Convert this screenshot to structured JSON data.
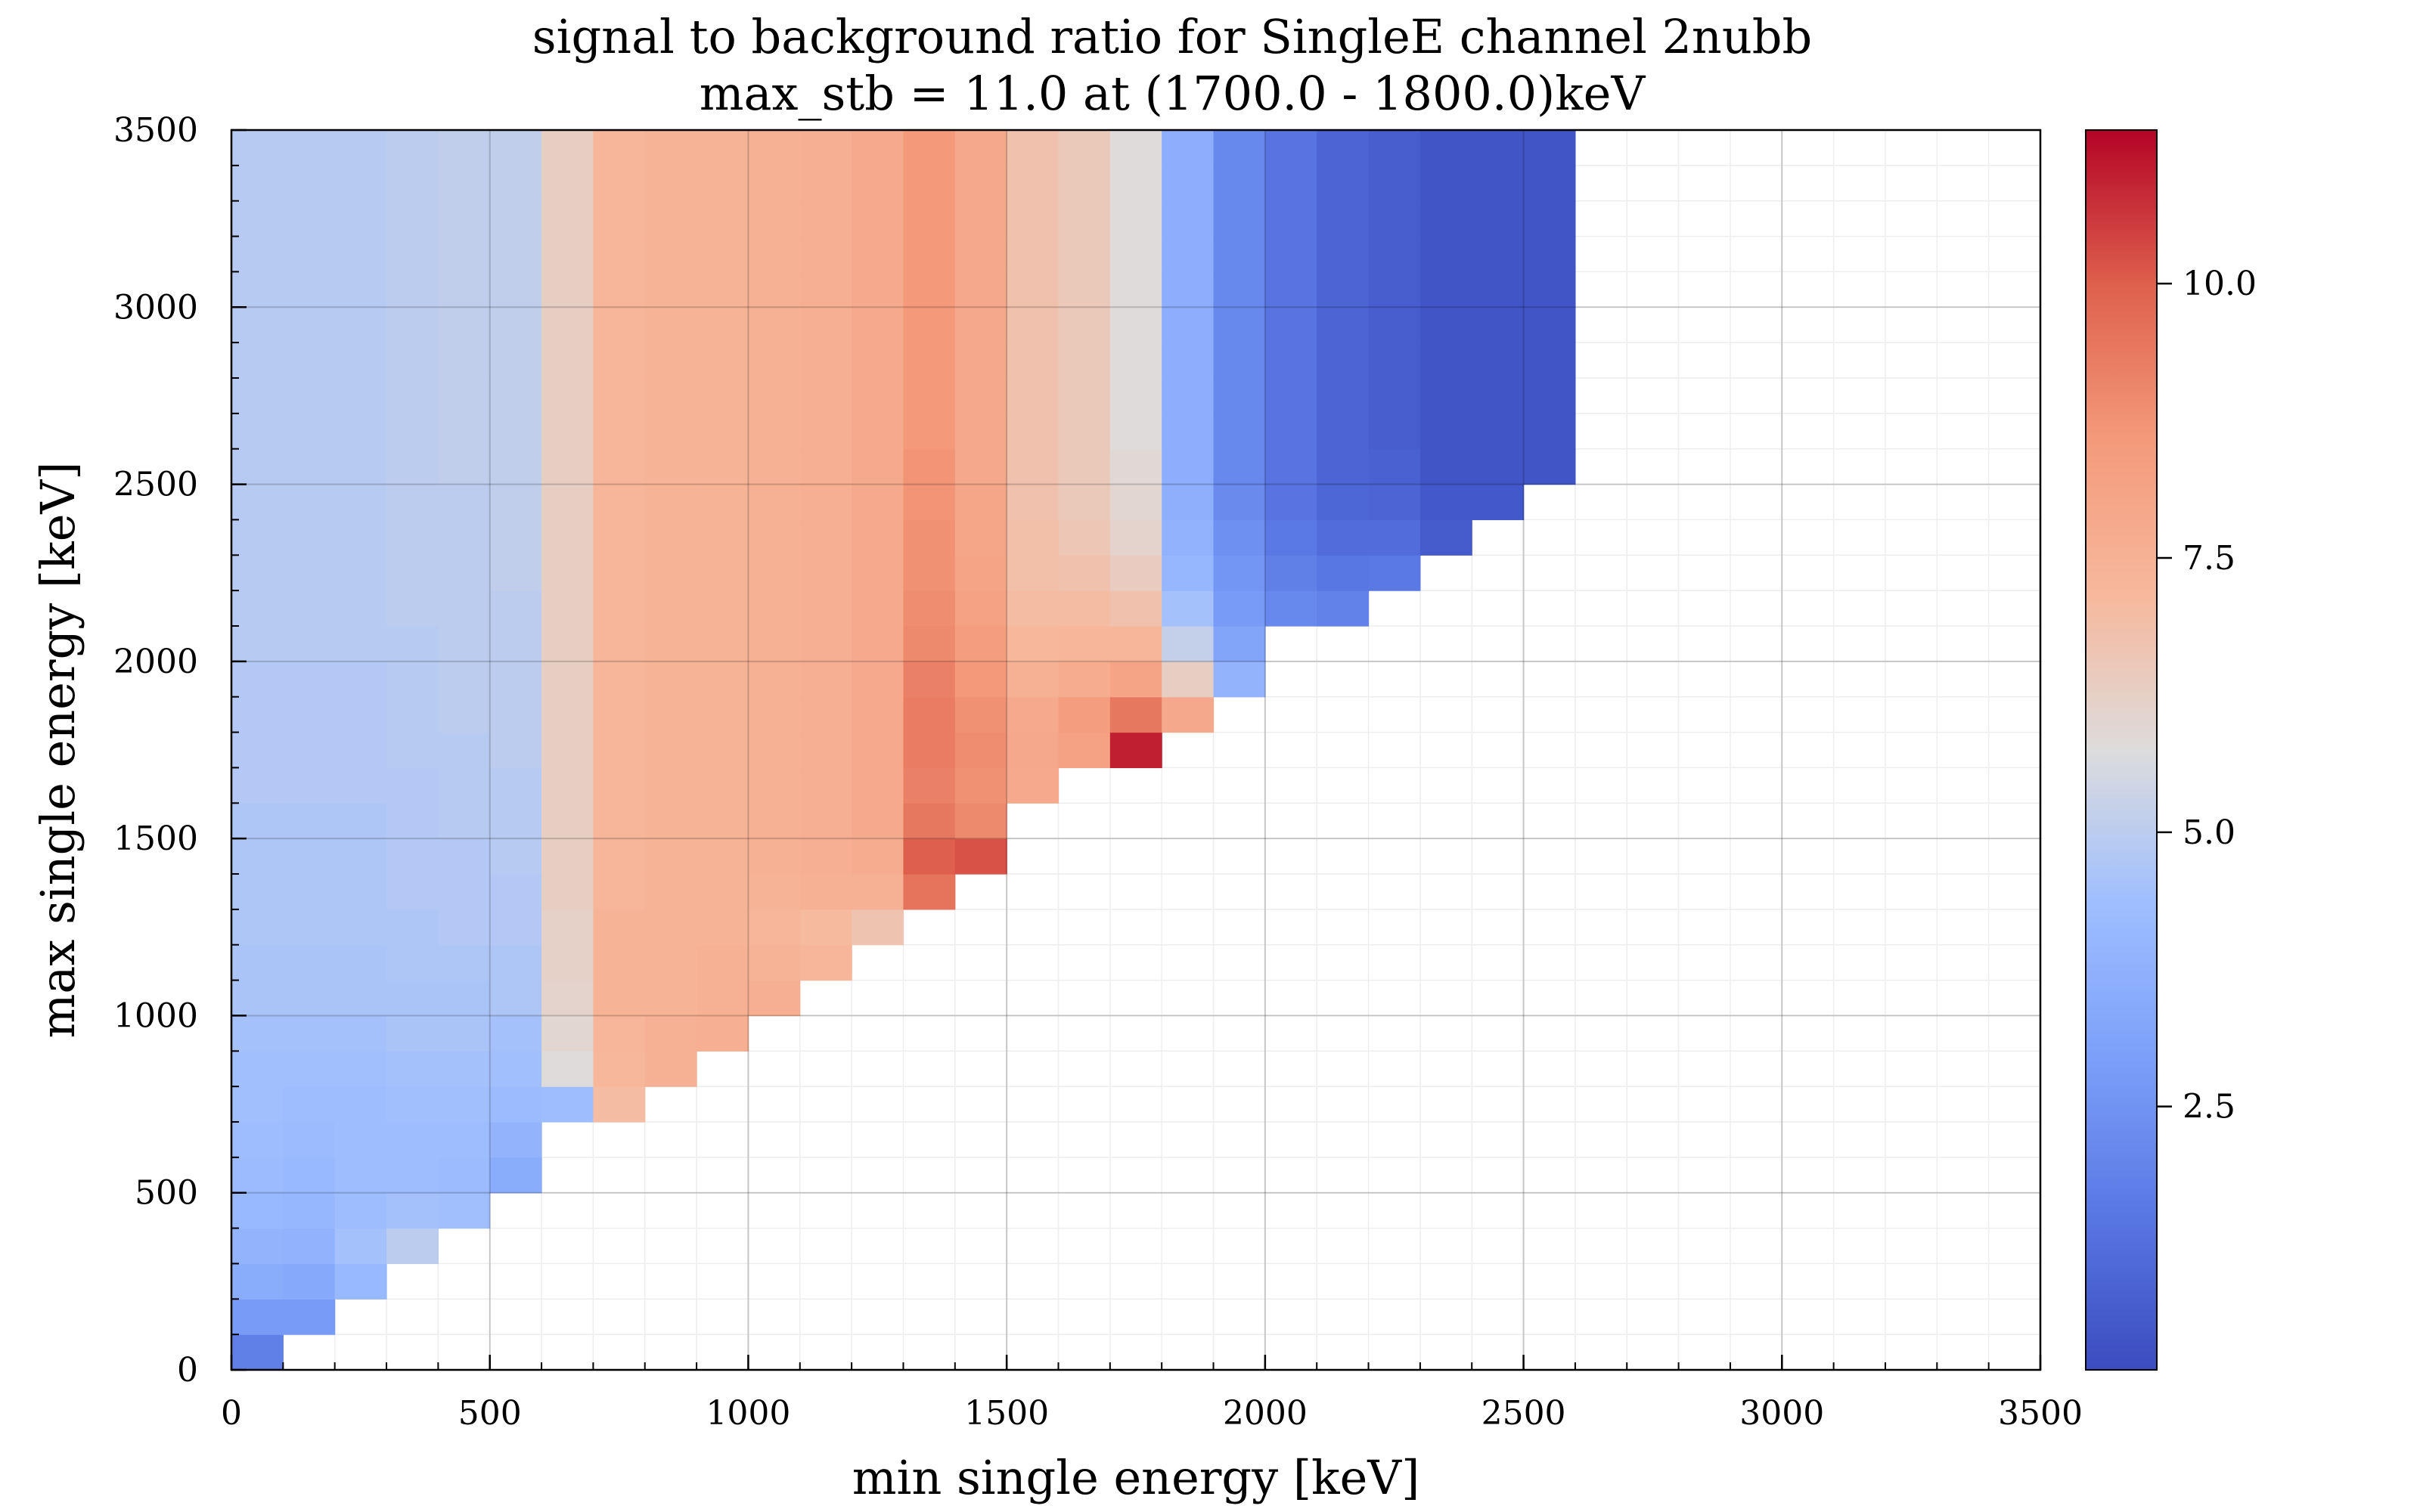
{
  "chart_data": {
    "type": "heatmap",
    "title": "signal to background ratio for SingleE channel 2nubb",
    "subtitle": "max_stb = 11.0 at (1700.0 - 1800.0)keV",
    "xlabel": "min single energy [keV]",
    "ylabel": "max single energy [keV]",
    "xlim": [
      0,
      3500
    ],
    "ylim": [
      0,
      3500
    ],
    "xticks": [
      "0",
      "500",
      "1000",
      "1500",
      "2000",
      "2500",
      "3000",
      "3500"
    ],
    "yticks": [
      "0",
      "500",
      "1000",
      "1500",
      "2000",
      "2500",
      "3000",
      "3500"
    ],
    "colorbar": {
      "range": [
        0.1,
        11.4
      ],
      "ticks": [
        "2.5",
        "5.0",
        "7.5",
        "10.0"
      ],
      "colormap": "coolwarm"
    },
    "bin_width": 100,
    "grid": true,
    "x_bin_starts": [
      0,
      100,
      200,
      300,
      400,
      500,
      600,
      700,
      800,
      900,
      1000,
      1100,
      1200,
      1300,
      1400,
      1500,
      1600,
      1700,
      1800,
      1900,
      2000,
      2100,
      2200,
      2300,
      2400,
      2500
    ],
    "columns": [
      {
        "x": 0,
        "y_min": 0,
        "values": [
          1.8,
          2.8,
          3.5,
          3.9,
          4.1,
          4.2,
          4.3,
          4.4,
          4.4,
          4.5,
          4.6,
          4.6,
          4.7,
          4.7,
          4.7,
          4.7,
          4.8,
          4.8,
          4.8,
          4.8,
          4.9,
          4.9,
          4.9,
          4.9,
          4.9,
          4.9,
          4.9,
          4.9,
          4.9,
          4.9,
          4.9,
          4.9,
          4.9,
          4.9,
          4.9
        ]
      },
      {
        "x": 100,
        "y_min": 100,
        "values": [
          2.8,
          3.4,
          3.8,
          4.0,
          4.1,
          4.2,
          4.3,
          4.4,
          4.5,
          4.6,
          4.6,
          4.7,
          4.7,
          4.7,
          4.7,
          4.8,
          4.8,
          4.8,
          4.8,
          4.9,
          4.9,
          4.9,
          4.9,
          4.9,
          4.9,
          4.9,
          4.9,
          4.9,
          4.9,
          4.9,
          4.9,
          4.9,
          4.9,
          4.9
        ]
      },
      {
        "x": 200,
        "y_min": 200,
        "values": [
          4.1,
          4.5,
          4.3,
          4.3,
          4.3,
          4.3,
          4.4,
          4.5,
          4.6,
          4.6,
          4.7,
          4.7,
          4.7,
          4.7,
          4.8,
          4.8,
          4.8,
          4.8,
          4.9,
          4.9,
          4.9,
          4.9,
          4.9,
          4.9,
          4.9,
          4.9,
          4.9,
          4.9,
          4.9,
          4.9,
          4.9,
          4.9,
          4.9
        ]
      },
      {
        "x": 300,
        "y_min": 300,
        "values": [
          5.0,
          4.5,
          4.3,
          4.3,
          4.4,
          4.5,
          4.6,
          4.6,
          4.7,
          4.7,
          4.8,
          4.8,
          4.8,
          4.8,
          4.9,
          4.9,
          4.9,
          4.9,
          5.0,
          5.0,
          5.0,
          5.0,
          5.0,
          5.0,
          5.0,
          5.0,
          5.0,
          5.0,
          5.0,
          5.0,
          5.0,
          5.0
        ]
      },
      {
        "x": 400,
        "y_min": 400,
        "values": [
          4.4,
          4.2,
          4.3,
          4.4,
          4.5,
          4.6,
          4.6,
          4.7,
          4.8,
          4.8,
          4.8,
          4.9,
          4.9,
          4.9,
          5.0,
          5.0,
          5.0,
          5.0,
          5.0,
          5.0,
          5.0,
          5.1,
          5.1,
          5.1,
          5.1,
          5.1,
          5.1,
          5.1,
          5.1,
          5.1,
          5.1
        ]
      },
      {
        "x": 500,
        "y_min": 500,
        "values": [
          3.5,
          3.9,
          4.2,
          4.4,
          4.5,
          4.7,
          4.7,
          4.8,
          4.8,
          4.9,
          4.9,
          4.9,
          5.0,
          5.0,
          5.0,
          5.0,
          5.0,
          5.1,
          5.1,
          5.1,
          5.1,
          5.1,
          5.1,
          5.1,
          5.1,
          5.1,
          5.1,
          5.1,
          5.1,
          5.1
        ]
      },
      {
        "x": 600,
        "y_min": 700,
        "values": [
          4.3,
          5.8,
          6.0,
          6.1,
          6.2,
          6.2,
          6.3,
          6.3,
          6.3,
          6.3,
          6.3,
          6.3,
          6.3,
          6.3,
          6.3,
          6.3,
          6.3,
          6.3,
          6.3,
          6.3,
          6.3,
          6.3,
          6.3,
          6.3,
          6.3,
          6.3,
          6.3,
          6.3
        ]
      },
      {
        "x": 700,
        "y_min": 700,
        "values": [
          7.0,
          7.2,
          7.3,
          7.4,
          7.4,
          7.4,
          7.3,
          7.3,
          7.3,
          7.3,
          7.3,
          7.3,
          7.3,
          7.3,
          7.3,
          7.3,
          7.3,
          7.3,
          7.3,
          7.3,
          7.3,
          7.3,
          7.3,
          7.3,
          7.3,
          7.3,
          7.3,
          7.3
        ]
      },
      {
        "x": 800,
        "y_min": 800,
        "values": [
          7.5,
          7.5,
          7.4,
          7.4,
          7.4,
          7.4,
          7.4,
          7.4,
          7.4,
          7.4,
          7.4,
          7.4,
          7.4,
          7.4,
          7.4,
          7.4,
          7.4,
          7.4,
          7.4,
          7.4,
          7.4,
          7.4,
          7.4,
          7.4,
          7.4,
          7.4,
          7.4
        ]
      },
      {
        "x": 900,
        "y_min": 900,
        "values": [
          7.6,
          7.5,
          7.5,
          7.4,
          7.4,
          7.4,
          7.4,
          7.4,
          7.4,
          7.4,
          7.4,
          7.4,
          7.4,
          7.4,
          7.4,
          7.4,
          7.4,
          7.4,
          7.4,
          7.4,
          7.4,
          7.4,
          7.4,
          7.4,
          7.4,
          7.4
        ]
      },
      {
        "x": 1000,
        "y_min": 1000,
        "values": [
          7.6,
          7.4,
          7.3,
          7.4,
          7.5,
          7.5,
          7.5,
          7.5,
          7.5,
          7.5,
          7.5,
          7.5,
          7.5,
          7.5,
          7.5,
          7.5,
          7.5,
          7.5,
          7.5,
          7.5,
          7.5,
          7.5,
          7.5,
          7.5,
          7.5
        ]
      },
      {
        "x": 1100,
        "y_min": 1100,
        "values": [
          7.3,
          7.1,
          7.5,
          7.6,
          7.6,
          7.6,
          7.6,
          7.6,
          7.6,
          7.6,
          7.6,
          7.6,
          7.6,
          7.6,
          7.6,
          7.6,
          7.6,
          7.6,
          7.6,
          7.6,
          7.6,
          7.6,
          7.6,
          7.6
        ]
      },
      {
        "x": 1200,
        "y_min": 1200,
        "values": [
          6.7,
          7.5,
          7.7,
          7.8,
          7.8,
          7.8,
          7.8,
          7.8,
          7.8,
          7.8,
          7.8,
          7.8,
          7.8,
          7.8,
          7.8,
          7.8,
          7.8,
          7.8,
          7.8,
          7.8,
          7.8,
          7.8,
          7.8
        ]
      },
      {
        "x": 1300,
        "y_min": 1300,
        "values": [
          9.5,
          10.0,
          9.4,
          9.2,
          9.3,
          9.3,
          9.2,
          9.0,
          8.9,
          8.8,
          8.8,
          8.7,
          8.7,
          8.6,
          8.6,
          8.6,
          8.6,
          8.6,
          8.6,
          8.6,
          8.6,
          8.6
        ]
      },
      {
        "x": 1400,
        "y_min": 1400,
        "values": [
          10.2,
          9.0,
          8.8,
          8.9,
          8.8,
          8.6,
          8.4,
          8.2,
          8.1,
          8.0,
          8.0,
          7.9,
          7.9,
          7.9,
          7.9,
          7.9,
          7.9,
          7.9,
          7.9,
          7.9,
          7.9
        ]
      },
      {
        "x": 1500,
        "y_min": 1600,
        "values": [
          7.8,
          7.9,
          7.8,
          7.5,
          7.2,
          7.0,
          6.9,
          6.9,
          6.8,
          6.8,
          6.8,
          6.8,
          6.8,
          6.8,
          6.8,
          6.8,
          6.8,
          6.8,
          6.8
        ]
      },
      {
        "x": 1600,
        "y_min": 1700,
        "values": [
          8.2,
          8.4,
          7.7,
          7.3,
          7.0,
          6.8,
          6.6,
          6.5,
          6.5,
          6.5,
          6.5,
          6.5,
          6.5,
          6.5,
          6.5,
          6.5,
          6.5,
          6.5
        ]
      },
      {
        "x": 1700,
        "y_min": 1700,
        "values": [
          11.0,
          9.4,
          8.1,
          7.3,
          6.8,
          6.4,
          6.1,
          6.0,
          5.9,
          5.8,
          5.8,
          5.8,
          5.8,
          5.8,
          5.8,
          5.8,
          5.8,
          5.8
        ]
      },
      {
        "x": 1800,
        "y_min": 1800,
        "values": [
          7.9,
          6.3,
          5.2,
          4.5,
          4.0,
          3.8,
          3.7,
          3.6,
          3.6,
          3.6,
          3.6,
          3.6,
          3.6,
          3.6,
          3.6,
          3.6,
          3.6
        ]
      },
      {
        "x": 1900,
        "y_min": 1900,
        "values": [
          3.9,
          3.2,
          2.8,
          2.6,
          2.4,
          2.2,
          2.1,
          2.1,
          2.1,
          2.1,
          2.1,
          2.1,
          2.1,
          2.1,
          2.1,
          2.1
        ]
      },
      {
        "x": 2000,
        "y_min": 2100,
        "values": [
          2.1,
          1.8,
          1.6,
          1.4,
          1.4,
          1.4,
          1.4,
          1.4,
          1.4,
          1.4,
          1.4,
          1.4,
          1.4,
          1.4
        ]
      },
      {
        "x": 2100,
        "y_min": 2100,
        "values": [
          1.9,
          1.5,
          1.2,
          1.0,
          0.9,
          0.9,
          0.9,
          0.9,
          0.9,
          0.9,
          0.9,
          0.9,
          0.9,
          0.9
        ]
      },
      {
        "x": 2200,
        "y_min": 2200,
        "values": [
          1.6,
          1.2,
          0.9,
          0.8,
          0.7,
          0.7,
          0.7,
          0.7,
          0.7,
          0.7,
          0.7,
          0.7,
          0.7
        ]
      },
      {
        "x": 2300,
        "y_min": 2300,
        "values": [
          0.6,
          0.5,
          0.4,
          0.4,
          0.4,
          0.4,
          0.4,
          0.4,
          0.4,
          0.4,
          0.4,
          0.4
        ]
      },
      {
        "x": 2400,
        "y_min": 2400,
        "values": [
          0.5,
          0.4,
          0.4,
          0.4,
          0.4,
          0.4,
          0.4,
          0.4,
          0.4,
          0.4,
          0.4
        ]
      },
      {
        "x": 2500,
        "y_min": 2500,
        "values": [
          0.4,
          0.4,
          0.4,
          0.4,
          0.4,
          0.4,
          0.4,
          0.4,
          0.4,
          0.4
        ]
      }
    ]
  }
}
